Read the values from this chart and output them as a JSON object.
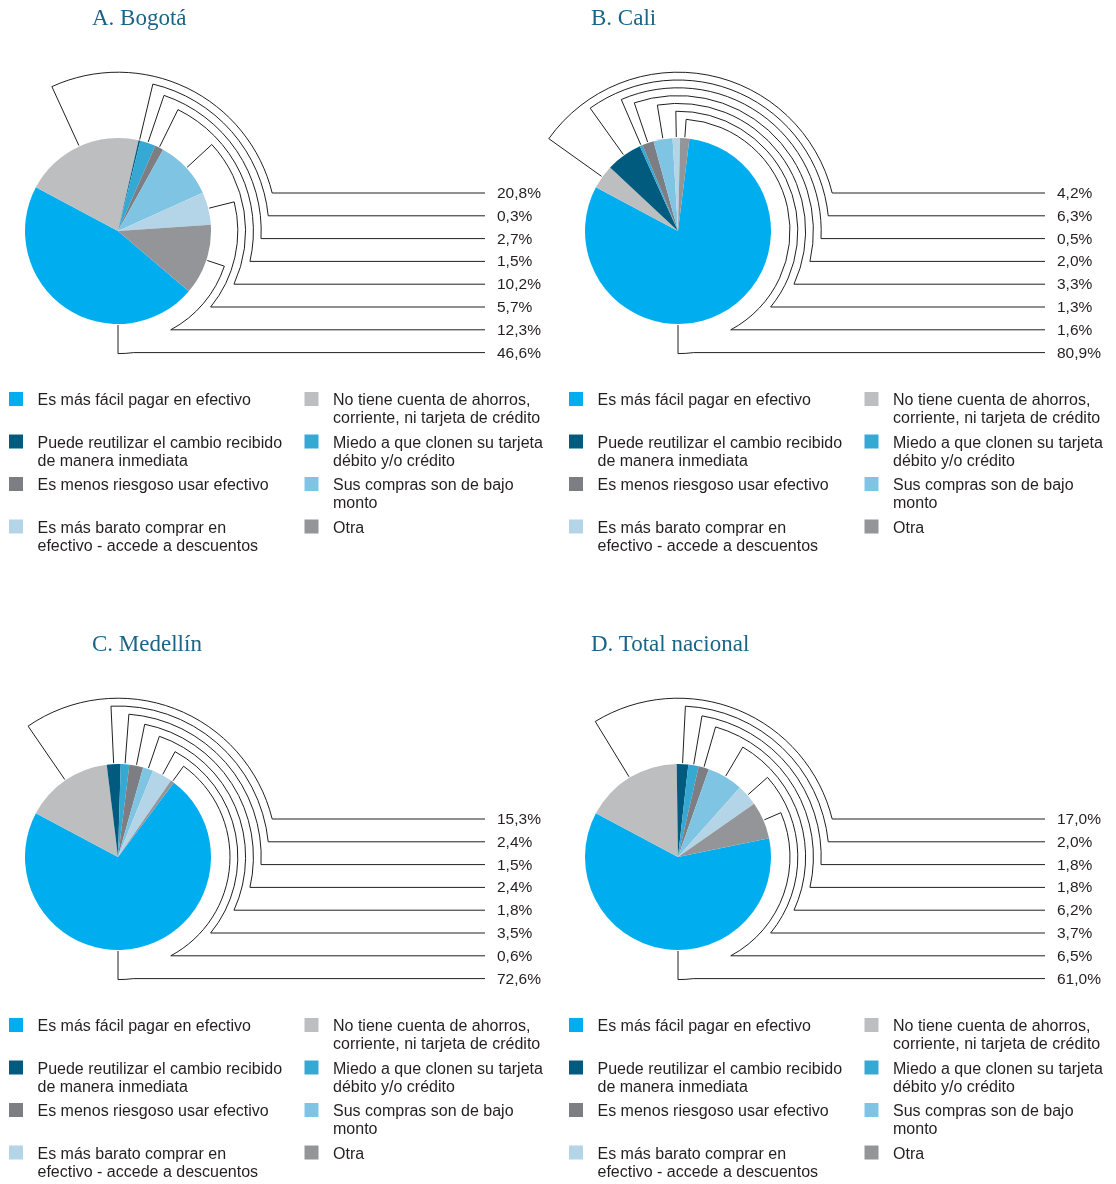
{
  "chart_data": [
    {
      "type": "pie",
      "title": "A. Bogotá",
      "categories": [
        "Es más fácil pagar en efectivo",
        "No tiene cuenta de ahorros, corriente, ni tarjeta de crédito",
        "Puede reutilizar el cambio recibido de manera inmediata",
        "Miedo a que clonen su tarjeta débito y/o crédito",
        "Es menos riesgoso usar efectivo",
        "Sus compras son de bajo monto",
        "Es más barato comprar en efectivo - accede a descuentos",
        "Otra"
      ],
      "values": [
        46.6,
        20.8,
        0.3,
        2.7,
        1.5,
        10.2,
        5.7,
        12.3
      ],
      "colors": [
        "#00aeef",
        "#bcbec0",
        "#005b7f",
        "#35a8d4",
        "#7d7e83",
        "#80c4e4",
        "#b3d5e7",
        "#939598"
      ],
      "value_labels": [
        "46,6%",
        "20,8%",
        "0,3%",
        "2,7%",
        "1,5%",
        "10,2%",
        "5,7%",
        "12,3%"
      ],
      "legend": "bottom"
    },
    {
      "type": "pie",
      "title": "B. Cali",
      "categories": [
        "Es más fácil pagar en efectivo",
        "No tiene cuenta de ahorros, corriente, ni tarjeta de crédito",
        "Puede reutilizar el cambio recibido de manera inmediata",
        "Miedo a que clonen su tarjeta débito y/o crédito",
        "Es menos riesgoso usar efectivo",
        "Sus compras son de bajo monto",
        "Es más barato comprar en efectivo - accede a descuentos",
        "Otra"
      ],
      "values": [
        80.9,
        4.2,
        6.3,
        0.5,
        2.0,
        3.3,
        1.3,
        1.6
      ],
      "colors": [
        "#00aeef",
        "#bcbec0",
        "#005b7f",
        "#35a8d4",
        "#7d7e83",
        "#80c4e4",
        "#b3d5e7",
        "#939598"
      ],
      "value_labels": [
        "80,9%",
        "4,2%",
        "6,3%",
        "0,5%",
        "2,0%",
        "3,3%",
        "1,3%",
        "1,6%"
      ],
      "legend": "bottom"
    },
    {
      "type": "pie",
      "title": "C. Medellín",
      "categories": [
        "Es más fácil pagar en efectivo",
        "No tiene cuenta de ahorros, corriente, ni tarjeta de crédito",
        "Puede reutilizar el cambio recibido de manera inmediata",
        "Miedo a que clonen su tarjeta débito y/o crédito",
        "Es menos riesgoso usar efectivo",
        "Sus compras son de bajo monto",
        "Es más barato comprar en efectivo - accede a descuentos",
        "Otra"
      ],
      "values": [
        72.6,
        15.3,
        2.4,
        1.5,
        2.4,
        1.8,
        3.5,
        0.6
      ],
      "colors": [
        "#00aeef",
        "#bcbec0",
        "#005b7f",
        "#35a8d4",
        "#7d7e83",
        "#80c4e4",
        "#b3d5e7",
        "#939598"
      ],
      "value_labels": [
        "72,6%",
        "15,3%",
        "2,4%",
        "1,5%",
        "2,4%",
        "1,8%",
        "3,5%",
        "0,6%"
      ],
      "legend": "bottom"
    },
    {
      "type": "pie",
      "title": "D. Total nacional",
      "categories": [
        "Es más fácil pagar en efectivo",
        "No tiene cuenta de ahorros, corriente, ni tarjeta de crédito",
        "Puede reutilizar el cambio recibido de manera inmediata",
        "Miedo a que clonen su tarjeta débito y/o crédito",
        "Es menos riesgoso usar efectivo",
        "Sus compras son de bajo monto",
        "Es más barato comprar en efectivo - accede a descuentos",
        "Otra"
      ],
      "values": [
        61.0,
        17.0,
        2.0,
        1.8,
        1.8,
        6.2,
        3.7,
        6.5
      ],
      "colors": [
        "#00aeef",
        "#bcbec0",
        "#005b7f",
        "#35a8d4",
        "#7d7e83",
        "#80c4e4",
        "#b3d5e7",
        "#939598"
      ],
      "value_labels": [
        "61,0%",
        "17,0%",
        "2,0%",
        "1,8%",
        "1,8%",
        "6,2%",
        "3,7%",
        "6,5%"
      ],
      "legend": "bottom"
    }
  ]
}
